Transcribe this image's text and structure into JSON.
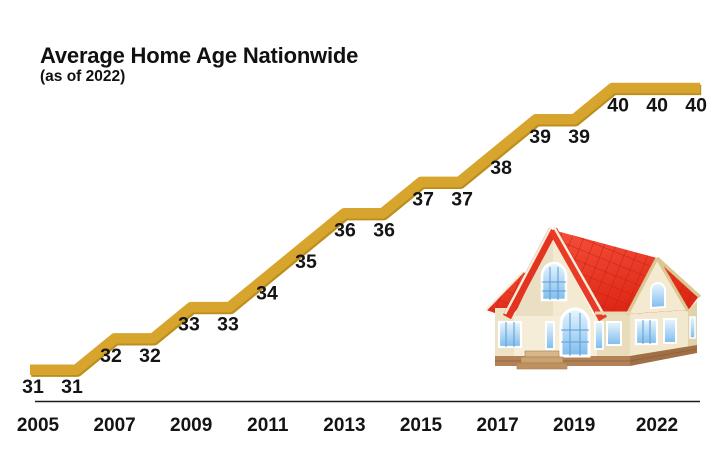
{
  "header": {
    "title": "Average Home Age Nationwide",
    "subtitle": "(as of 2022)"
  },
  "chart_data": {
    "type": "line",
    "line_style": "stepped",
    "title": "Average Home Age Nationwide",
    "subtitle": "(as of 2022)",
    "x": [
      2005,
      2006,
      2007,
      2008,
      2009,
      2010,
      2011,
      2012,
      2013,
      2014,
      2015,
      2016,
      2017,
      2018,
      2019,
      2020,
      2021,
      2022
    ],
    "values": [
      31,
      31,
      32,
      32,
      33,
      33,
      34,
      35,
      36,
      36,
      37,
      37,
      38,
      39,
      39,
      40,
      40,
      40
    ],
    "point_labels": [
      "31",
      "31",
      "32",
      "32",
      "33",
      "33",
      "34",
      "35",
      "36",
      "36",
      "37",
      "37",
      "38",
      "39",
      "39",
      "40",
      "40",
      "40"
    ],
    "x_tick_labels": [
      "2005",
      "2007",
      "2009",
      "2011",
      "2013",
      "2015",
      "2017",
      "2019",
      "2022"
    ],
    "xlabel": "",
    "ylabel": "",
    "ylim": [
      31,
      40
    ],
    "grid": false,
    "legend": "none",
    "line_color": "#D7A52E",
    "line_shadow_color": "#BC8F1D",
    "label_color": "#141414",
    "axis_color": "#1B1B1B"
  },
  "illustration": {
    "name": "house-illustration",
    "colors": {
      "roof_red": "#E8392B",
      "roof_tile_line": "#C32413",
      "wall_cream": "#F3EAD1",
      "window_blue": "#7FBCEC",
      "foundation_brown": "#B28157",
      "trim_tan": "#DCC692"
    }
  }
}
